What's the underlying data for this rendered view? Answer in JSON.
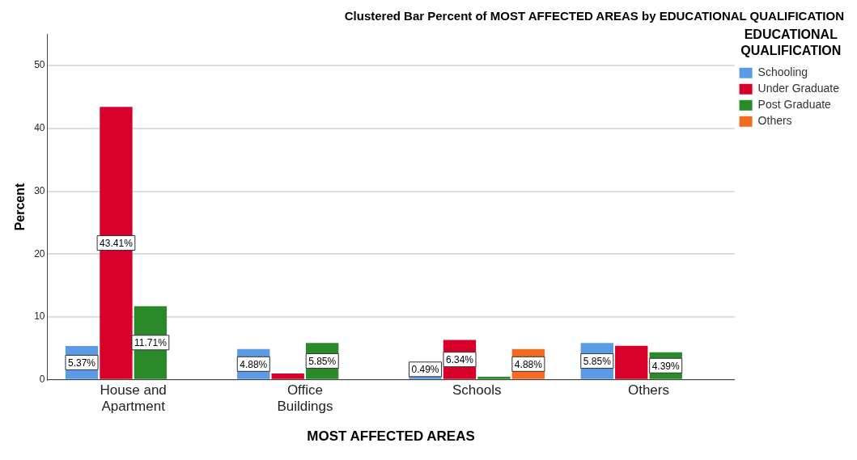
{
  "chart_data": {
    "type": "bar",
    "title": "Clustered Bar Percent of MOST AFFECTED AREAS by EDUCATIONAL QUALIFICATION",
    "xlabel": "MOST AFFECTED AREAS",
    "ylabel": "Percent",
    "legend_title": "EDUCATIONAL QUALIFICATION",
    "categories": [
      "House and Apartment",
      "Office Buildings",
      "Schools",
      "Others"
    ],
    "series": [
      {
        "name": "Schooling",
        "color": "#5b9be6",
        "values": [
          5.37,
          4.88,
          0.49,
          5.85
        ],
        "value_labels": [
          "5.37%",
          "4.88%",
          "0.49%",
          "5.85%"
        ]
      },
      {
        "name": "Under Graduate",
        "color": "#d6002a",
        "values": [
          43.41,
          1.0,
          6.34,
          5.4
        ],
        "value_labels": [
          "43.41%",
          null,
          "6.34%",
          null
        ]
      },
      {
        "name": "Post Graduate",
        "color": "#2a8a2a",
        "values": [
          11.71,
          5.85,
          0.5,
          4.39
        ],
        "value_labels": [
          "11.71%",
          "5.85%",
          null,
          "4.39%"
        ]
      },
      {
        "name": "Others",
        "color": "#f26b21",
        "values": [
          null,
          null,
          4.88,
          null
        ],
        "value_labels": [
          null,
          null,
          "4.88%",
          null
        ]
      }
    ],
    "ylim": [
      0,
      55
    ],
    "yticks": [
      0,
      10,
      20,
      30,
      40,
      50
    ],
    "grid": "y",
    "legend": "top right"
  }
}
